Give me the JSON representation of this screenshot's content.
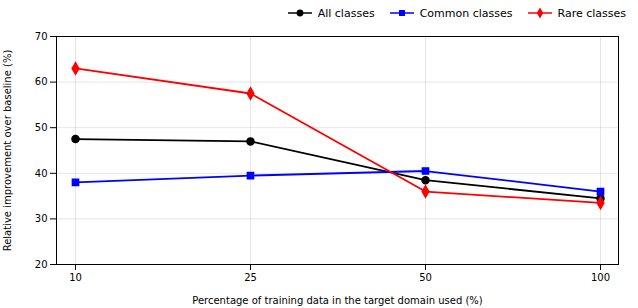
{
  "chart_data": {
    "type": "line",
    "categories": [
      "10",
      "25",
      "50",
      "100"
    ],
    "series": [
      {
        "name": "All classes",
        "color": "#000000",
        "marker": "circle",
        "values": [
          47.5,
          47.0,
          38.5,
          34.5
        ]
      },
      {
        "name": "Common classes",
        "color": "#0000ff",
        "marker": "square",
        "values": [
          38.0,
          39.5,
          40.5,
          36.0
        ]
      },
      {
        "name": "Rare classes",
        "color": "#ff0000",
        "marker": "diamond",
        "values": [
          63.0,
          57.5,
          36.0,
          33.5
        ]
      }
    ],
    "xlabel": "Percentage of training data in the target domain used (%)",
    "ylabel": "Relative improvement over baseline (%)",
    "ylim": [
      20,
      70
    ],
    "yticks": [
      20,
      30,
      40,
      50,
      60,
      70
    ],
    "grid": true,
    "legend": "upper right"
  }
}
